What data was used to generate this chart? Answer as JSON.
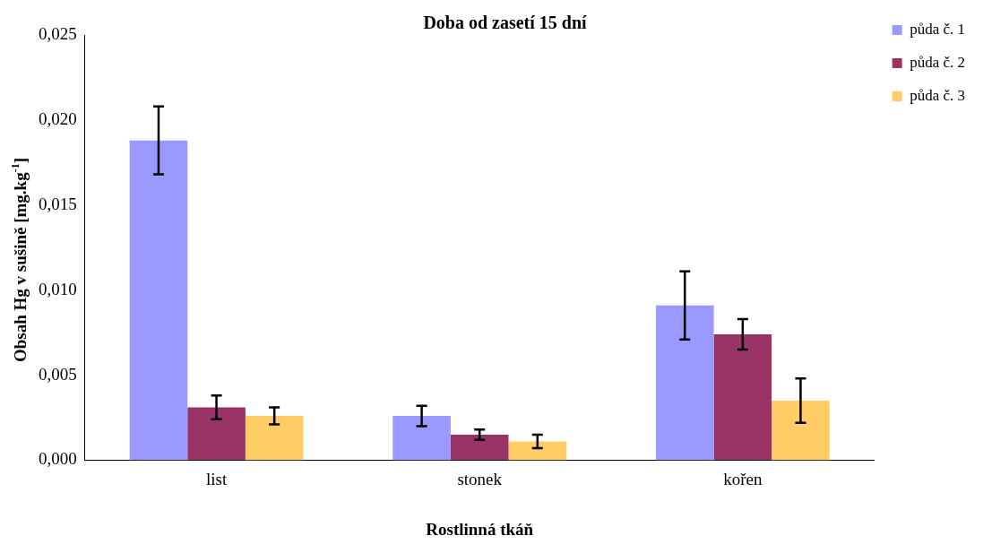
{
  "chart_data": {
    "type": "bar",
    "title": "Doba od zasetí 15 dní",
    "xlabel": "Rostlinná tkáň",
    "ylabel": "Obsah Hg v sušině [mg.kg$^{-1}$]",
    "categories": [
      "list",
      "stonek",
      "kořen"
    ],
    "series": [
      {
        "name": "půda č. 1",
        "color": "#9999ff",
        "values": [
          0.0188,
          0.0026,
          0.0091
        ],
        "errors": [
          0.002,
          0.0006,
          0.002
        ]
      },
      {
        "name": "půda č. 2",
        "color": "#993366",
        "values": [
          0.0031,
          0.0015,
          0.0074
        ],
        "errors": [
          0.0007,
          0.0003,
          0.0009
        ]
      },
      {
        "name": "půda č. 3",
        "color": "#ffcc66",
        "values": [
          0.0026,
          0.0011,
          0.0035
        ],
        "errors": [
          0.0005,
          0.0004,
          0.0013
        ]
      }
    ],
    "ylim": [
      0,
      0.025
    ],
    "yticks": [
      {
        "value": 0,
        "label": "0,000"
      },
      {
        "value": 0.005,
        "label": "0,005"
      },
      {
        "value": 0.01,
        "label": "0,010"
      },
      {
        "value": 0.015,
        "label": "0,015"
      },
      {
        "value": 0.02,
        "label": "0,020"
      },
      {
        "value": 0.025,
        "label": "0,025"
      }
    ],
    "grid": false,
    "legend": "top right"
  }
}
